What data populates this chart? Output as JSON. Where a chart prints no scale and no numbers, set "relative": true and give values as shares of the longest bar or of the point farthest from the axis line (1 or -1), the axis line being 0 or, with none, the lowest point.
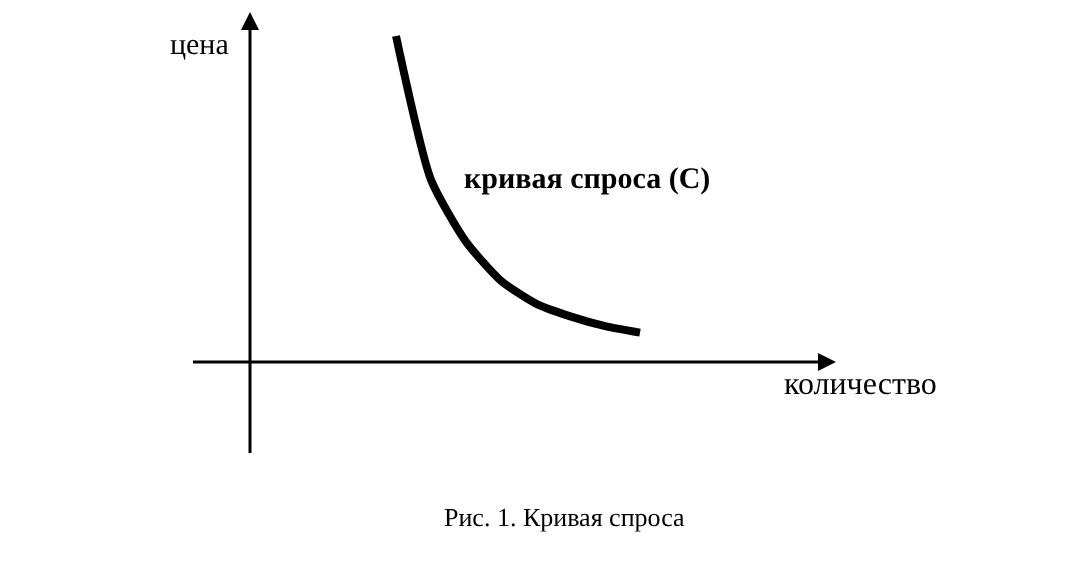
{
  "chart_data": {
    "type": "line",
    "relative": true,
    "categories": [
      null,
      null,
      null,
      null,
      null,
      null,
      null,
      null
    ],
    "series": [
      {
        "name": "кривая спроса (С)",
        "color": "#000000",
        "values": [
          1,
          0.56,
          0.37,
          0.25,
          0.18,
          0.14,
          0.11,
          0.09
        ]
      }
    ],
    "xlabel": "количество",
    "ylabel": "цена",
    "annotations": [
      "Рис. 1. Кривая спроса"
    ],
    "tick_labels": false,
    "legend": false,
    "marker": "none",
    "line_style": "solid"
  }
}
